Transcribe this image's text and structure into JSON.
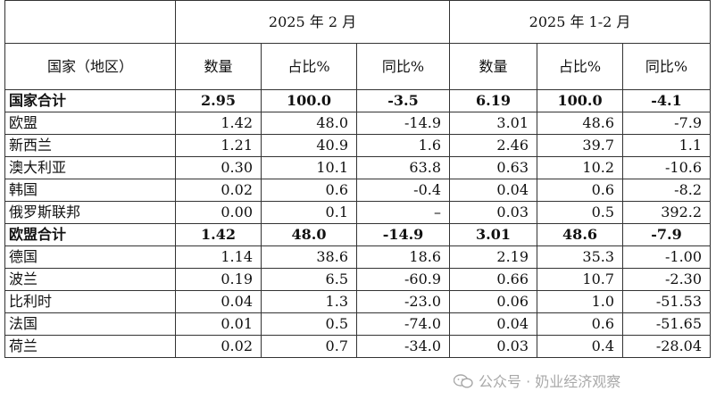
{
  "headers": {
    "period1": "2025 年 2 月",
    "period2": "2025 年 1-2 月",
    "country": "国家（地区）",
    "qty": "数量",
    "share": "占比%",
    "yoy": "同比%"
  },
  "rows": [
    {
      "name": "国家合计",
      "q1": "2.95",
      "s1": "100.0",
      "y1": "-3.5",
      "q2": "6.19",
      "s2": "100.0",
      "y2": "-4.1",
      "bold": true
    },
    {
      "name": "欧盟",
      "q1": "1.42",
      "s1": "48.0",
      "y1": "-14.9",
      "q2": "3.01",
      "s2": "48.6",
      "y2": "-7.9"
    },
    {
      "name": "新西兰",
      "q1": "1.21",
      "s1": "40.9",
      "y1": "1.6",
      "q2": "2.46",
      "s2": "39.7",
      "y2": "1.1"
    },
    {
      "name": "澳大利亚",
      "q1": "0.30",
      "s1": "10.1",
      "y1": "63.8",
      "q2": "0.63",
      "s2": "10.2",
      "y2": "-10.6"
    },
    {
      "name": "韩国",
      "q1": "0.02",
      "s1": "0.6",
      "y1": "-0.4",
      "q2": "0.04",
      "s2": "0.6",
      "y2": "-8.2"
    },
    {
      "name": "俄罗斯联邦",
      "q1": "0.00",
      "s1": "0.1",
      "y1": "–",
      "q2": "0.03",
      "s2": "0.5",
      "y2": "392.2"
    },
    {
      "name": "欧盟合计",
      "q1": "1.42",
      "s1": "48.0",
      "y1": "-14.9",
      "q2": "3.01",
      "s2": "48.6",
      "y2": "-7.9",
      "bold": true
    },
    {
      "name": "德国",
      "q1": "1.14",
      "s1": "38.6",
      "y1": "18.6",
      "q2": "2.19",
      "s2": "35.3",
      "y2": "-1.00"
    },
    {
      "name": "波兰",
      "q1": "0.19",
      "s1": "6.5",
      "y1": "-60.9",
      "q2": "0.66",
      "s2": "10.7",
      "y2": "-2.30"
    },
    {
      "name": "比利时",
      "q1": "0.04",
      "s1": "1.3",
      "y1": "-23.0",
      "q2": "0.06",
      "s2": "1.0",
      "y2": "-51.53"
    },
    {
      "name": "法国",
      "q1": "0.01",
      "s1": "0.5",
      "y1": "-74.0",
      "q2": "0.04",
      "s2": "0.6",
      "y2": "-51.65"
    },
    {
      "name": "荷兰",
      "q1": "0.02",
      "s1": "0.7",
      "y1": "-34.0",
      "q2": "0.03",
      "s2": "0.4",
      "y2": "-28.04"
    }
  ],
  "watermark": {
    "text": "公众号 · 奶业经济观察",
    "icon": "wechat-icon"
  }
}
